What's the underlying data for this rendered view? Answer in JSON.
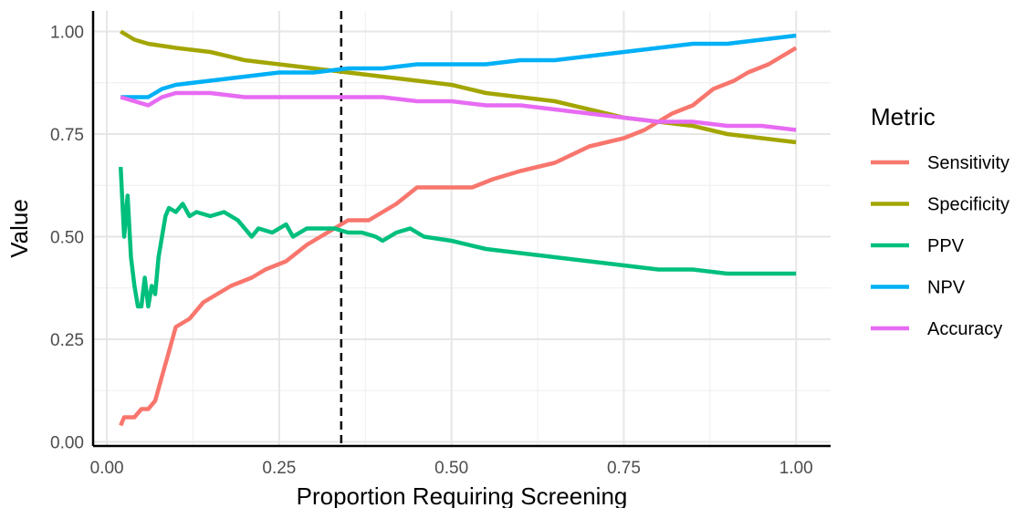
{
  "chart_data": {
    "type": "line",
    "title": "",
    "xlabel": "Proportion Requiring Screening",
    "ylabel": "Value",
    "xlim": [
      -0.02,
      1.05
    ],
    "ylim": [
      -0.01,
      1.05
    ],
    "x_ticks": [
      0.0,
      0.25,
      0.5,
      0.75,
      1.0
    ],
    "x_tick_labels": [
      "0.00",
      "0.25",
      "0.50",
      "0.75",
      "1.00"
    ],
    "y_ticks": [
      0.0,
      0.25,
      0.5,
      0.75,
      1.0
    ],
    "y_tick_labels": [
      "0.00",
      "0.25",
      "0.50",
      "0.75",
      "1.00"
    ],
    "grid": true,
    "legend": {
      "title": "Metric",
      "position": "right"
    },
    "reference_line": {
      "orientation": "vertical",
      "x": 0.34,
      "style": "dashed",
      "color": "#000000"
    },
    "series": [
      {
        "name": "Sensitivity",
        "color": "#F8766D",
        "x": [
          0.02,
          0.025,
          0.04,
          0.05,
          0.06,
          0.07,
          0.08,
          0.09,
          0.1,
          0.12,
          0.14,
          0.16,
          0.18,
          0.21,
          0.23,
          0.26,
          0.29,
          0.31,
          0.33,
          0.35,
          0.38,
          0.4,
          0.42,
          0.45,
          0.5,
          0.53,
          0.56,
          0.6,
          0.65,
          0.7,
          0.75,
          0.78,
          0.8,
          0.82,
          0.85,
          0.88,
          0.91,
          0.93,
          0.96,
          0.98,
          1.0
        ],
        "y": [
          0.04,
          0.06,
          0.06,
          0.08,
          0.08,
          0.1,
          0.16,
          0.22,
          0.28,
          0.3,
          0.34,
          0.36,
          0.38,
          0.4,
          0.42,
          0.44,
          0.48,
          0.5,
          0.52,
          0.54,
          0.54,
          0.56,
          0.58,
          0.62,
          0.62,
          0.62,
          0.64,
          0.66,
          0.68,
          0.72,
          0.74,
          0.76,
          0.78,
          0.8,
          0.82,
          0.86,
          0.88,
          0.9,
          0.92,
          0.94,
          0.96
        ]
      },
      {
        "name": "Specificity",
        "color": "#A3A500",
        "x": [
          0.02,
          0.04,
          0.06,
          0.1,
          0.15,
          0.2,
          0.25,
          0.3,
          0.35,
          0.4,
          0.45,
          0.5,
          0.55,
          0.6,
          0.65,
          0.7,
          0.75,
          0.8,
          0.85,
          0.9,
          0.95,
          1.0
        ],
        "y": [
          1.0,
          0.98,
          0.97,
          0.96,
          0.95,
          0.93,
          0.92,
          0.91,
          0.9,
          0.89,
          0.88,
          0.87,
          0.85,
          0.84,
          0.83,
          0.81,
          0.79,
          0.78,
          0.77,
          0.75,
          0.74,
          0.73
        ]
      },
      {
        "name": "PPV",
        "color": "#00BF7D",
        "x": [
          0.02,
          0.025,
          0.03,
          0.035,
          0.04,
          0.045,
          0.05,
          0.055,
          0.06,
          0.065,
          0.07,
          0.075,
          0.08,
          0.085,
          0.09,
          0.1,
          0.11,
          0.12,
          0.13,
          0.15,
          0.17,
          0.19,
          0.21,
          0.22,
          0.24,
          0.26,
          0.27,
          0.29,
          0.31,
          0.33,
          0.35,
          0.37,
          0.39,
          0.4,
          0.42,
          0.44,
          0.46,
          0.5,
          0.55,
          0.6,
          0.65,
          0.7,
          0.75,
          0.8,
          0.85,
          0.9,
          0.95,
          1.0
        ],
        "y": [
          0.67,
          0.5,
          0.6,
          0.45,
          0.38,
          0.33,
          0.33,
          0.4,
          0.33,
          0.38,
          0.36,
          0.45,
          0.5,
          0.55,
          0.57,
          0.56,
          0.58,
          0.55,
          0.56,
          0.55,
          0.56,
          0.54,
          0.5,
          0.52,
          0.51,
          0.53,
          0.5,
          0.52,
          0.52,
          0.52,
          0.51,
          0.51,
          0.5,
          0.49,
          0.51,
          0.52,
          0.5,
          0.49,
          0.47,
          0.46,
          0.45,
          0.44,
          0.43,
          0.42,
          0.42,
          0.41,
          0.41,
          0.41
        ]
      },
      {
        "name": "NPV",
        "color": "#00B0F6",
        "x": [
          0.02,
          0.04,
          0.06,
          0.08,
          0.1,
          0.15,
          0.2,
          0.25,
          0.3,
          0.35,
          0.4,
          0.45,
          0.5,
          0.55,
          0.6,
          0.65,
          0.7,
          0.75,
          0.8,
          0.85,
          0.9,
          0.95,
          1.0
        ],
        "y": [
          0.84,
          0.84,
          0.84,
          0.86,
          0.87,
          0.88,
          0.89,
          0.9,
          0.9,
          0.91,
          0.91,
          0.92,
          0.92,
          0.92,
          0.93,
          0.93,
          0.94,
          0.95,
          0.96,
          0.97,
          0.97,
          0.98,
          0.99
        ]
      },
      {
        "name": "Accuracy",
        "color": "#E76BF3",
        "x": [
          0.02,
          0.04,
          0.06,
          0.08,
          0.1,
          0.15,
          0.2,
          0.25,
          0.3,
          0.35,
          0.4,
          0.45,
          0.5,
          0.55,
          0.6,
          0.65,
          0.7,
          0.75,
          0.8,
          0.85,
          0.9,
          0.95,
          1.0
        ],
        "y": [
          0.84,
          0.83,
          0.82,
          0.84,
          0.85,
          0.85,
          0.84,
          0.84,
          0.84,
          0.84,
          0.84,
          0.83,
          0.83,
          0.82,
          0.82,
          0.81,
          0.8,
          0.79,
          0.78,
          0.78,
          0.77,
          0.77,
          0.76
        ]
      }
    ]
  }
}
